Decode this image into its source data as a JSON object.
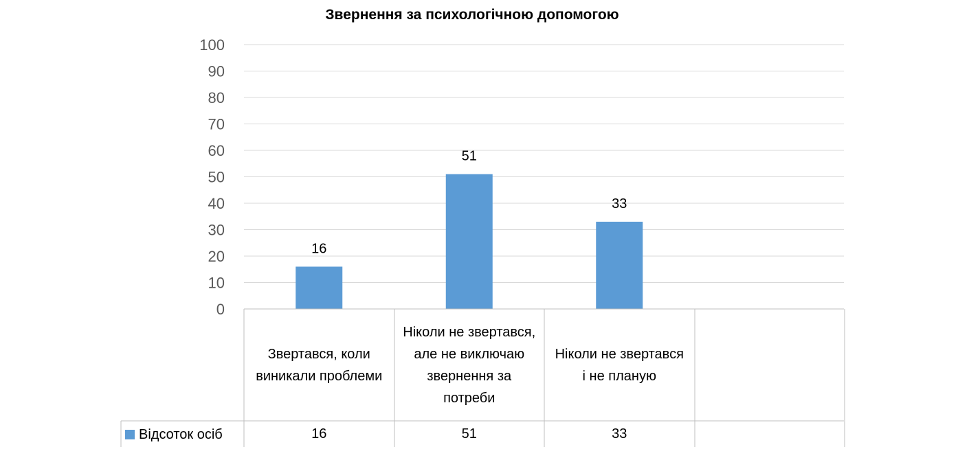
{
  "chart_data": {
    "type": "bar",
    "title": "Звернення за психологічною допомогою",
    "categories": [
      "Звертався, коли виникали проблеми",
      "Ніколи не звертався, але не виключаю звернення за потреби",
      "Ніколи не звертався і не планую"
    ],
    "series": [
      {
        "name": "Відсоток осіб",
        "values": [
          16,
          51,
          33
        ],
        "color": "#5b9bd5"
      }
    ],
    "ylim": [
      0,
      100
    ],
    "yticks": [
      "0",
      "10",
      "20",
      "30",
      "40",
      "50",
      "60",
      "70",
      "80",
      "90",
      "100"
    ],
    "grid": true,
    "data_labels": [
      "16",
      "51",
      "33"
    ],
    "data_table": true,
    "legend": "data table"
  }
}
